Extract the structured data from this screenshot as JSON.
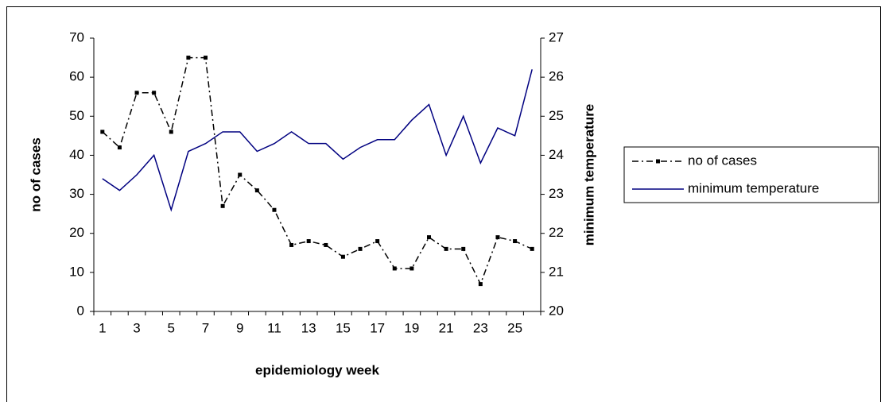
{
  "chart_data": {
    "type": "line",
    "x_label": "epidemiology week",
    "y_label": "no of cases",
    "y2_label": "minimum temperature",
    "categories": [
      "1",
      null,
      "3",
      null,
      "5",
      null,
      "7",
      null,
      "9",
      null,
      "11",
      null,
      "13",
      null,
      "15",
      null,
      "17",
      null,
      "19",
      null,
      "21",
      null,
      "23",
      null,
      "25",
      null
    ],
    "series": [
      {
        "name": "no of cases",
        "color": "#000000",
        "axis": "y",
        "dash": "dashdot",
        "marker": "square",
        "values": [
          46,
          42,
          56,
          56,
          46,
          65,
          65,
          27,
          35,
          31,
          26,
          17,
          18,
          17,
          14,
          16,
          18,
          11,
          11,
          19,
          16,
          16,
          7,
          19,
          18,
          16
        ]
      },
      {
        "name": "minimum temperature",
        "color": "#000080",
        "axis": "y2",
        "dash": "solid",
        "marker": "none",
        "values": [
          23.4,
          23.1,
          23.5,
          24.0,
          22.6,
          24.1,
          24.3,
          24.6,
          24.6,
          24.1,
          24.3,
          24.6,
          24.3,
          24.3,
          23.9,
          24.2,
          24.4,
          24.4,
          24.9,
          25.3,
          24.0,
          25.0,
          23.8,
          24.7,
          24.5,
          26.2
        ]
      }
    ],
    "ylim": [
      0,
      70
    ],
    "yticks": [
      0,
      10,
      20,
      30,
      40,
      50,
      60,
      70
    ],
    "y2lim": [
      20,
      27
    ],
    "y2ticks": [
      20,
      21,
      22,
      23,
      24,
      25,
      26,
      27
    ],
    "grid": false,
    "legend": "right"
  }
}
